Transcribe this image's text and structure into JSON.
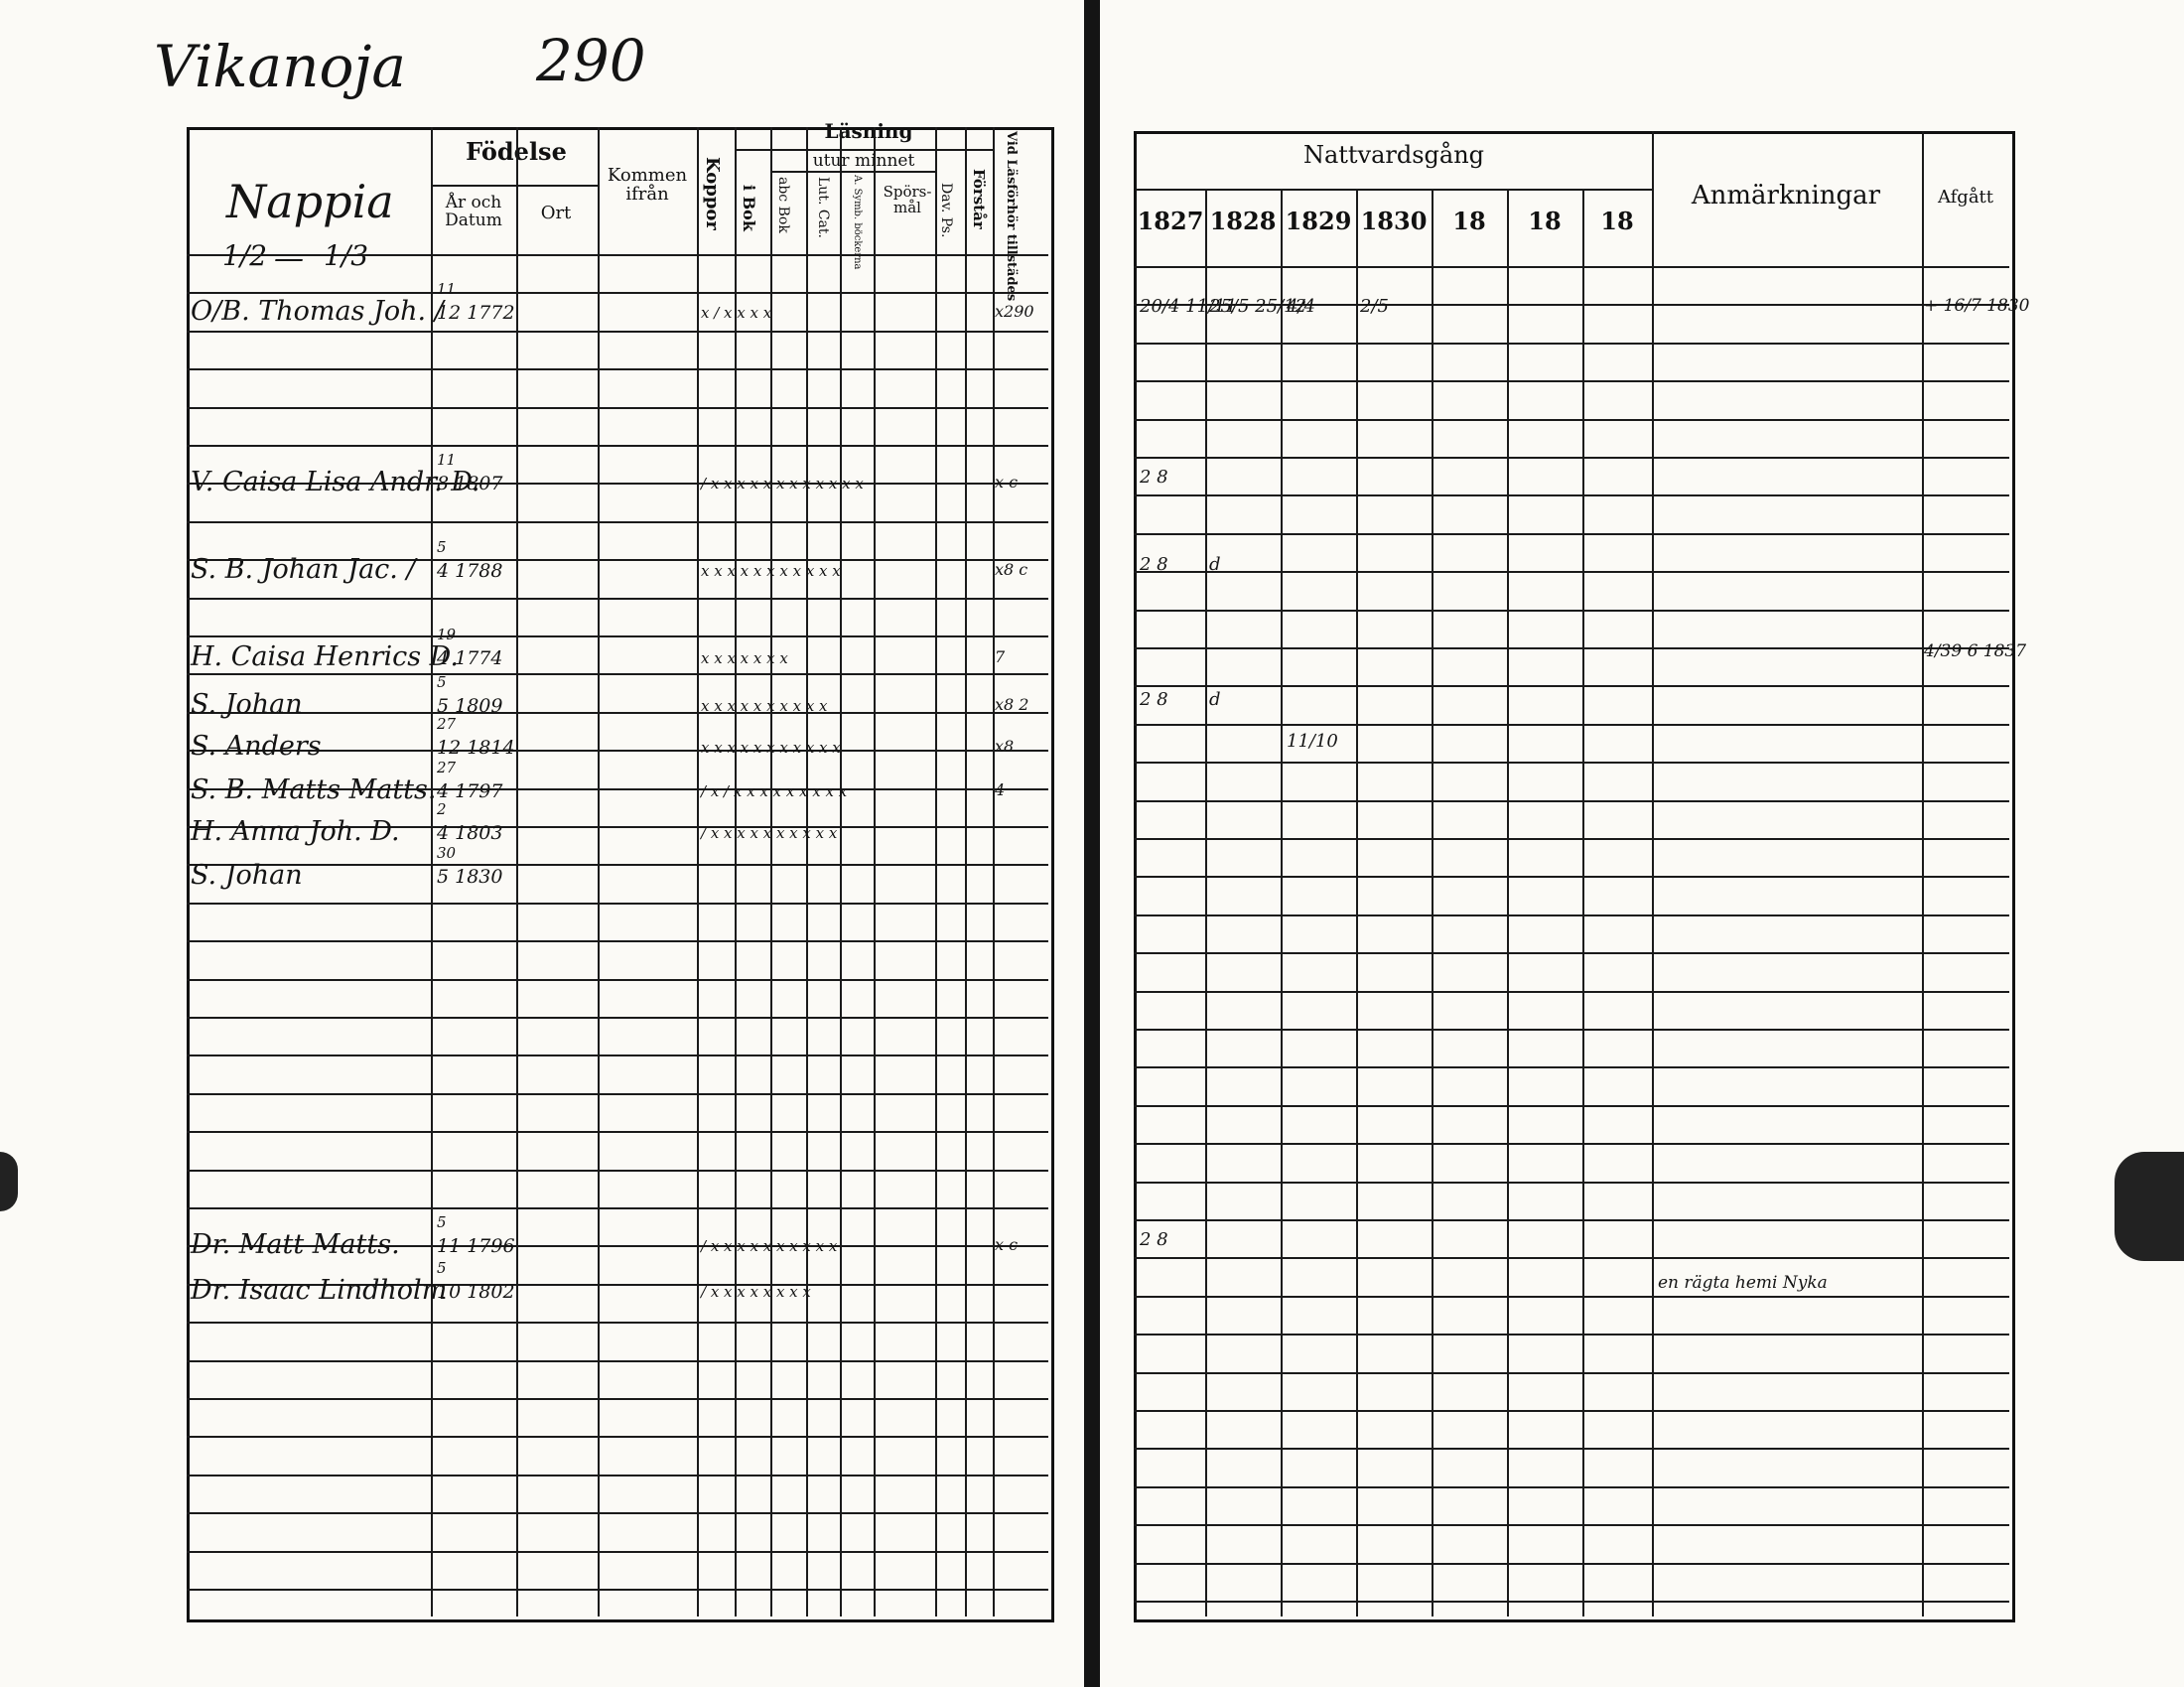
{
  "page_title": {
    "village": "Vikanoja",
    "number": "290"
  },
  "left_header": {
    "house_name": "Nappia",
    "fraction_1": "1/2",
    "dash": "—",
    "fraction_2": "1/3",
    "fodelse": "Födelse",
    "ar_och_datum": "År och Datum",
    "ort": "Ort",
    "kommen_ifran": "Kommen ifrån",
    "koppor": "Koppor",
    "lasning": "Läsning",
    "utur_minnet": "utur minnet",
    "i_bok": "i Bok",
    "abc_bok": "abc Bok",
    "lut_cat": "Lut. Cat.",
    "ar_symb_bockerna": "A. Symb. böckerna",
    "sporsmal": "Spörs-mål",
    "dav_ps": "Dav. Ps.",
    "forstar": "Förstår",
    "vid_lasforhor": "Vid Läsförhör tillstädes"
  },
  "right_header": {
    "nattvardsgang": "Nattvardsgång",
    "years": [
      "1827",
      "1828",
      "1829",
      "1830",
      "18",
      "18",
      "18"
    ],
    "anmarkningar": "Anmärkningar",
    "afgatt": "Afgått"
  },
  "entries": [
    {
      "name": "O/B. Thomas Joh. /",
      "birth_day": "11",
      "birth_date": "12 1772",
      "reading": "x / x x  x x",
      "lasforhor": "x290",
      "nattvard": [
        "20/4 11/11",
        "25/5 25/12",
        "4/4",
        "2/5"
      ],
      "afgatt": "+ 16/7 1830"
    },
    {
      "name": "V. Caisa Lisa Andr. D.",
      "birth_day": "11",
      "birth_date": "8 1807",
      "reading": "/ x x x x x x x x x x x x",
      "lasforhor": "x c",
      "nattvard": [
        "2 8",
        "",
        "",
        ""
      ],
      "afgatt": ""
    },
    {
      "name": "S. B. Johan Jac. /",
      "birth_day": "5",
      "birth_date": "4 1788",
      "reading": "x x  x x x x  x x x x x",
      "lasforhor": "x8 c",
      "nattvard": [
        "2 8",
        "d",
        "",
        ""
      ],
      "afgatt": ""
    },
    {
      "name": "H. Caisa Henrics D.",
      "birth_day": "19",
      "birth_date": "4 1774",
      "reading": "x x x x x x x",
      "lasforhor": "7",
      "nattvard": [
        "",
        "",
        "",
        ""
      ],
      "afgatt": "4/39 6 1837"
    },
    {
      "name": "S. Johan",
      "birth_day": "5",
      "birth_date": "5 1809",
      "reading": "x x x x x x x x x x",
      "lasforhor": "x8 2",
      "nattvard": [
        "2 8",
        "d",
        "",
        ""
      ],
      "afgatt": ""
    },
    {
      "name": "S. Anders",
      "birth_day": "27",
      "birth_date": "12 1814",
      "reading": "x x x x x x x x x x x",
      "lasforhor": "x8",
      "nattvard": [
        "",
        "",
        "11/10",
        ""
      ],
      "afgatt": ""
    },
    {
      "name": "S. B. Matts Matts.",
      "birth_day": "27",
      "birth_date": "4 1797",
      "reading": "/ x / x x x x x x x x x",
      "lasforhor": "4",
      "nattvard": [
        "",
        "",
        "",
        ""
      ],
      "afgatt": ""
    },
    {
      "name": "H. Anna Joh. D.",
      "birth_day": "2",
      "birth_date": "4 1803",
      "reading": "/ x x x x x x x x x x",
      "lasforhor": "",
      "nattvard": [
        "",
        "",
        "",
        ""
      ],
      "afgatt": ""
    },
    {
      "name": "S. Johan",
      "birth_day": "30",
      "birth_date": "5 1830",
      "reading": "",
      "lasforhor": "",
      "nattvard": [
        "",
        "",
        "",
        ""
      ],
      "afgatt": ""
    },
    {
      "name": "Dr. Matt Matts.",
      "birth_day": "5",
      "birth_date": "11 1796",
      "reading": "/ x x x x x x x x x x",
      "lasforhor": "x c",
      "nattvard": [
        "2 8",
        "",
        "",
        ""
      ],
      "afgatt": ""
    },
    {
      "name": "Dr. Isaac Lindholm",
      "birth_day": "5",
      "birth_date": "10 1802",
      "reading": "/ x x x x x x x x",
      "lasforhor": "",
      "nattvard": [
        "",
        "",
        "",
        ""
      ],
      "anmarkning": "en rägta hemi Nyka",
      "afgatt": ""
    }
  ]
}
